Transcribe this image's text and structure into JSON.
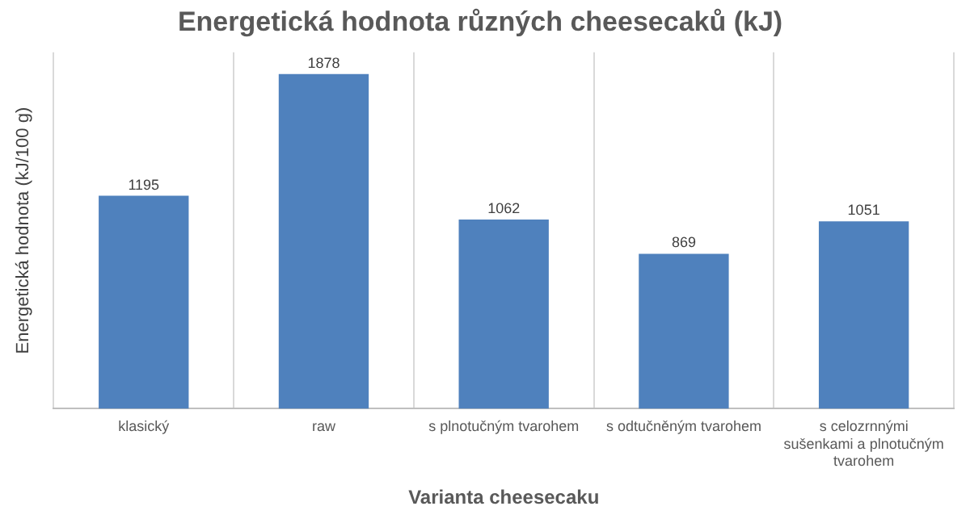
{
  "chart_data": {
    "type": "bar",
    "title": "Energetická hodnota různých cheesecaků (kJ)",
    "xlabel": "Varianta cheesecaku",
    "ylabel": "Energetická hodnota (kJ/100 g)",
    "categories": [
      "klasický",
      "raw",
      "s plnotučným tvarohem",
      "s odtučněným tvarohem",
      "s celozrnnými sušenkami a plnotučným tvarohem"
    ],
    "values": [
      1195,
      1878,
      1062,
      869,
      1051
    ],
    "color": "#4f81bd",
    "ylim": [
      0,
      2000
    ],
    "grid": "x",
    "tick_labels": "x",
    "data_labels": true,
    "legend": false
  }
}
